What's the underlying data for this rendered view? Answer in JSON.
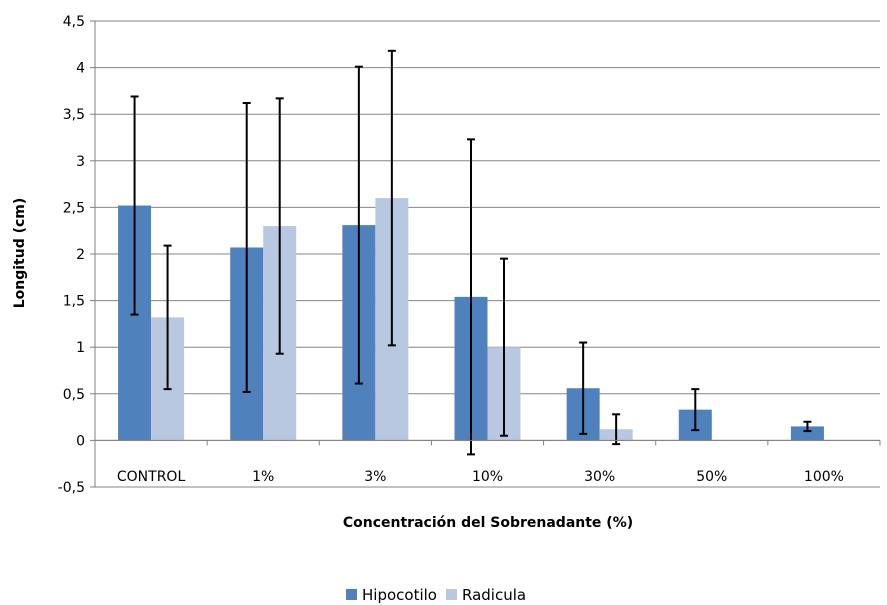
{
  "chart_data": {
    "type": "bar",
    "title": "",
    "xlabel": "Concentración del Sobrenadante (%)",
    "ylabel": "Longitud (cm)",
    "ylim": [
      -0.5,
      4.5
    ],
    "ytick_step": 0.5,
    "ytick_labels": [
      "-0,5",
      "0",
      "0,5",
      "1",
      "1,5",
      "2",
      "2,5",
      "3",
      "3,5",
      "4",
      "4,5"
    ],
    "grid": true,
    "legend_position": "bottom",
    "categories": [
      "CONTROL",
      "1%",
      "3%",
      "10%",
      "30%",
      "50%",
      "100%"
    ],
    "series": [
      {
        "name": "Hipocotilo",
        "color": "#4f81bd",
        "values": [
          2.52,
          2.07,
          2.31,
          1.54,
          0.56,
          0.33,
          0.15
        ],
        "error": [
          1.17,
          1.55,
          1.7,
          1.69,
          0.49,
          0.22,
          0.05
        ]
      },
      {
        "name": "Radicula",
        "color": "#b9c8e1",
        "values": [
          1.32,
          2.3,
          2.6,
          1.0,
          0.12,
          0,
          0
        ],
        "error": [
          0.77,
          1.37,
          1.58,
          0.95,
          0.16,
          0,
          0
        ]
      }
    ]
  }
}
